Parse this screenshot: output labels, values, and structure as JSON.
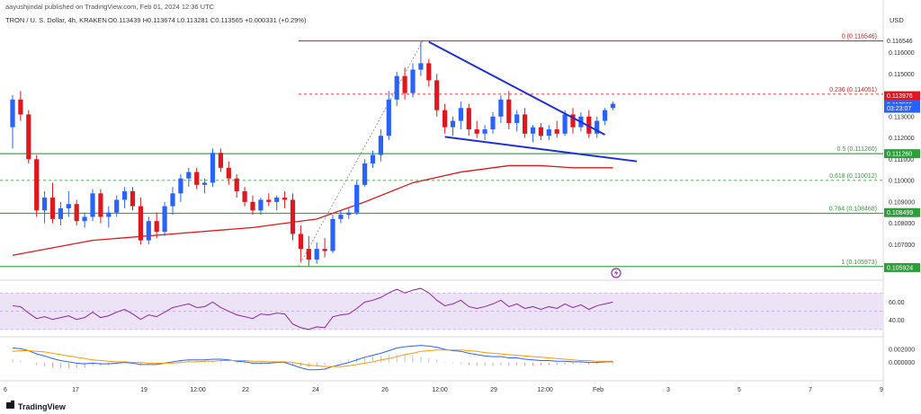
{
  "header": {
    "attribution": "aayushjindal published on TradingView.com, Feb 01, 2024 12:36 UTC",
    "symbol_line": "TRON / U. S. Dollar, 4h, KRAKEN",
    "ohlc": "O0.113439 H0.113674 L0.113281 C0.113565 +0.000331 (+0.29%)"
  },
  "axis": {
    "currency": "USD"
  },
  "footer": {
    "brand": "TradingView"
  },
  "colors": {
    "up": "#2962ff",
    "down": "#e0171f",
    "ma": "#e0171f",
    "fib_red": "#e0171f",
    "fib_green": "#2e9d3a",
    "rsi_line": "#8e24aa",
    "rsi_band": "#ede3f6",
    "trendline": "#1f2fd6",
    "macd_line": "#2962ff",
    "signal_line": "#ff9800"
  },
  "chart_data": [
    {
      "type": "candlestick",
      "title": "TRON / U. S. Dollar, 4h, KRAKEN",
      "ylim": [
        0.1055,
        0.1172
      ],
      "y_ticks": [
        "0.116000",
        "0.115000",
        "0.113000",
        "0.112000",
        "0.111000",
        "0.110000",
        "0.109000",
        "0.108000",
        "0.107000"
      ],
      "x_ticks": [
        "6",
        "17",
        "19",
        "12:00",
        "22",
        "24",
        "26",
        "12:00",
        "29",
        "12:00",
        "Feb",
        "3",
        "5",
        "7",
        "9"
      ],
      "candles": [
        {
          "o": 0.1125,
          "h": 0.114,
          "l": 0.1115,
          "c": 0.1138
        },
        {
          "o": 0.1138,
          "h": 0.1142,
          "l": 0.1128,
          "c": 0.1131
        },
        {
          "o": 0.1131,
          "h": 0.1133,
          "l": 0.1108,
          "c": 0.111
        },
        {
          "o": 0.111,
          "h": 0.1112,
          "l": 0.1083,
          "c": 0.1086
        },
        {
          "o": 0.1086,
          "h": 0.1095,
          "l": 0.108,
          "c": 0.1092
        },
        {
          "o": 0.1092,
          "h": 0.1099,
          "l": 0.108,
          "c": 0.1082
        },
        {
          "o": 0.1082,
          "h": 0.109,
          "l": 0.1079,
          "c": 0.1087
        },
        {
          "o": 0.1087,
          "h": 0.1095,
          "l": 0.1083,
          "c": 0.1089
        },
        {
          "o": 0.1089,
          "h": 0.1091,
          "l": 0.1079,
          "c": 0.1081
        },
        {
          "o": 0.1081,
          "h": 0.1085,
          "l": 0.1078,
          "c": 0.1083
        },
        {
          "o": 0.1083,
          "h": 0.1096,
          "l": 0.1081,
          "c": 0.1094
        },
        {
          "o": 0.1094,
          "h": 0.1096,
          "l": 0.108,
          "c": 0.1083
        },
        {
          "o": 0.1083,
          "h": 0.1088,
          "l": 0.1078,
          "c": 0.1085
        },
        {
          "o": 0.1085,
          "h": 0.1093,
          "l": 0.1083,
          "c": 0.1091
        },
        {
          "o": 0.1091,
          "h": 0.1097,
          "l": 0.1087,
          "c": 0.1095
        },
        {
          "o": 0.1095,
          "h": 0.1097,
          "l": 0.1086,
          "c": 0.1088
        },
        {
          "o": 0.1088,
          "h": 0.1092,
          "l": 0.107,
          "c": 0.1072
        },
        {
          "o": 0.1072,
          "h": 0.1083,
          "l": 0.107,
          "c": 0.1081
        },
        {
          "o": 0.1081,
          "h": 0.1085,
          "l": 0.1073,
          "c": 0.1076
        },
        {
          "o": 0.1076,
          "h": 0.109,
          "l": 0.1074,
          "c": 0.1088
        },
        {
          "o": 0.1088,
          "h": 0.1097,
          "l": 0.1084,
          "c": 0.1094
        },
        {
          "o": 0.1094,
          "h": 0.1103,
          "l": 0.109,
          "c": 0.1101
        },
        {
          "o": 0.1101,
          "h": 0.1106,
          "l": 0.1097,
          "c": 0.1104
        },
        {
          "o": 0.1104,
          "h": 0.1106,
          "l": 0.1096,
          "c": 0.1098
        },
        {
          "o": 0.1098,
          "h": 0.1101,
          "l": 0.1094,
          "c": 0.1099
        },
        {
          "o": 0.1099,
          "h": 0.1115,
          "l": 0.1097,
          "c": 0.1113
        },
        {
          "o": 0.1113,
          "h": 0.1115,
          "l": 0.1104,
          "c": 0.1106
        },
        {
          "o": 0.1106,
          "h": 0.1109,
          "l": 0.1098,
          "c": 0.1101
        },
        {
          "o": 0.1101,
          "h": 0.1103,
          "l": 0.1092,
          "c": 0.1095
        },
        {
          "o": 0.1095,
          "h": 0.1097,
          "l": 0.1088,
          "c": 0.109
        },
        {
          "o": 0.109,
          "h": 0.1093,
          "l": 0.1084,
          "c": 0.1086
        },
        {
          "o": 0.1086,
          "h": 0.1092,
          "l": 0.1084,
          "c": 0.1091
        },
        {
          "o": 0.1091,
          "h": 0.1094,
          "l": 0.1088,
          "c": 0.109
        },
        {
          "o": 0.109,
          "h": 0.1093,
          "l": 0.1086,
          "c": 0.1092
        },
        {
          "o": 0.1092,
          "h": 0.1095,
          "l": 0.1087,
          "c": 0.1091
        },
        {
          "o": 0.1091,
          "h": 0.1094,
          "l": 0.1072,
          "c": 0.1075
        },
        {
          "o": 0.1075,
          "h": 0.1079,
          "l": 0.1062,
          "c": 0.1068
        },
        {
          "o": 0.1068,
          "h": 0.1074,
          "l": 0.106,
          "c": 0.1063
        },
        {
          "o": 0.1063,
          "h": 0.1071,
          "l": 0.1061,
          "c": 0.1068
        },
        {
          "o": 0.1068,
          "h": 0.1073,
          "l": 0.1064,
          "c": 0.1067
        },
        {
          "o": 0.1067,
          "h": 0.1084,
          "l": 0.1066,
          "c": 0.1082
        },
        {
          "o": 0.1082,
          "h": 0.1086,
          "l": 0.108,
          "c": 0.1084
        },
        {
          "o": 0.1084,
          "h": 0.1087,
          "l": 0.1082,
          "c": 0.1085
        },
        {
          "o": 0.1085,
          "h": 0.11,
          "l": 0.1084,
          "c": 0.1098
        },
        {
          "o": 0.1098,
          "h": 0.111,
          "l": 0.1097,
          "c": 0.1108
        },
        {
          "o": 0.1108,
          "h": 0.1114,
          "l": 0.1106,
          "c": 0.1112
        },
        {
          "o": 0.1112,
          "h": 0.1124,
          "l": 0.1109,
          "c": 0.1121
        },
        {
          "o": 0.1121,
          "h": 0.1142,
          "l": 0.1119,
          "c": 0.1138
        },
        {
          "o": 0.1138,
          "h": 0.1151,
          "l": 0.1135,
          "c": 0.1149
        },
        {
          "o": 0.1149,
          "h": 0.1153,
          "l": 0.1138,
          "c": 0.1141
        },
        {
          "o": 0.1141,
          "h": 0.1155,
          "l": 0.1139,
          "c": 0.1152
        },
        {
          "o": 0.1152,
          "h": 0.1165,
          "l": 0.1149,
          "c": 0.1155
        },
        {
          "o": 0.1155,
          "h": 0.1157,
          "l": 0.1144,
          "c": 0.1147
        },
        {
          "o": 0.1147,
          "h": 0.115,
          "l": 0.113,
          "c": 0.1133
        },
        {
          "o": 0.1133,
          "h": 0.1136,
          "l": 0.1122,
          "c": 0.1125
        },
        {
          "o": 0.1125,
          "h": 0.113,
          "l": 0.1121,
          "c": 0.1128
        },
        {
          "o": 0.1128,
          "h": 0.1137,
          "l": 0.1124,
          "c": 0.1134
        },
        {
          "o": 0.1134,
          "h": 0.1136,
          "l": 0.1121,
          "c": 0.1124
        },
        {
          "o": 0.1124,
          "h": 0.1128,
          "l": 0.112,
          "c": 0.1122
        },
        {
          "o": 0.1122,
          "h": 0.1126,
          "l": 0.1119,
          "c": 0.1124
        },
        {
          "o": 0.1124,
          "h": 0.1132,
          "l": 0.1122,
          "c": 0.113
        },
        {
          "o": 0.113,
          "h": 0.114,
          "l": 0.1127,
          "c": 0.1138
        },
        {
          "o": 0.1138,
          "h": 0.1142,
          "l": 0.1124,
          "c": 0.1127
        },
        {
          "o": 0.1127,
          "h": 0.1133,
          "l": 0.1123,
          "c": 0.1131
        },
        {
          "o": 0.1131,
          "h": 0.1134,
          "l": 0.112,
          "c": 0.1122
        },
        {
          "o": 0.1122,
          "h": 0.1126,
          "l": 0.1118,
          "c": 0.1125
        },
        {
          "o": 0.1125,
          "h": 0.1127,
          "l": 0.1119,
          "c": 0.1121
        },
        {
          "o": 0.1121,
          "h": 0.1126,
          "l": 0.1119,
          "c": 0.1124
        },
        {
          "o": 0.1124,
          "h": 0.1128,
          "l": 0.112,
          "c": 0.1122
        },
        {
          "o": 0.1122,
          "h": 0.1133,
          "l": 0.1121,
          "c": 0.1131
        },
        {
          "o": 0.1131,
          "h": 0.1134,
          "l": 0.1122,
          "c": 0.1125
        },
        {
          "o": 0.1125,
          "h": 0.1132,
          "l": 0.1123,
          "c": 0.113
        },
        {
          "o": 0.113,
          "h": 0.1133,
          "l": 0.112,
          "c": 0.1122
        },
        {
          "o": 0.1122,
          "h": 0.113,
          "l": 0.112,
          "c": 0.1128
        },
        {
          "o": 0.1128,
          "h": 0.1134,
          "l": 0.1126,
          "c": 0.1133
        },
        {
          "o": 0.1134,
          "h": 0.1137,
          "l": 0.1133,
          "c": 0.1136
        }
      ],
      "ma": [
        {
          "i": 0,
          "v": 0.1065
        },
        {
          "i": 10,
          "v": 0.1072
        },
        {
          "i": 20,
          "v": 0.1075
        },
        {
          "i": 30,
          "v": 0.1078
        },
        {
          "i": 38,
          "v": 0.1082
        },
        {
          "i": 44,
          "v": 0.109
        },
        {
          "i": 50,
          "v": 0.1099
        },
        {
          "i": 56,
          "v": 0.1104
        },
        {
          "i": 62,
          "v": 0.1107
        },
        {
          "i": 66,
          "v": 0.1107
        },
        {
          "i": 70,
          "v": 0.1106
        },
        {
          "i": 75,
          "v": 0.1106
        }
      ],
      "trendlines": [
        {
          "from": {
            "i": 52,
            "v": 0.1165
          },
          "to": {
            "i": 74,
            "v": 0.11215
          }
        },
        {
          "from": {
            "i": 54,
            "v": 0.11205
          },
          "to": {
            "i": 78,
            "v": 0.1109
          }
        }
      ],
      "fib_levels": [
        {
          "label": "0 (0.116546)",
          "value": 0.116546,
          "color": "red",
          "style": "solid"
        },
        {
          "label": "0.236 (0.114051)",
          "value": 0.114051,
          "color": "red",
          "style": "dashed"
        },
        {
          "label": "0.5 (0.111260)",
          "value": 0.11126,
          "color": "green",
          "style": "solid"
        },
        {
          "label": "0.618 (0.110012)",
          "value": 0.110012,
          "color": "green",
          "style": "dashed"
        },
        {
          "label": "0.764 (0.108468)",
          "value": 0.108468,
          "color": "green",
          "style": "solid"
        },
        {
          "label": "1 (0.105973)",
          "value": 0.105973,
          "color": "green",
          "style": "solid"
        }
      ],
      "price_badges": [
        {
          "text": "0.116546",
          "value": 0.116546,
          "color": "none"
        },
        {
          "text": "0.113976",
          "value": 0.113976,
          "color": "red"
        },
        {
          "text": "0.113565",
          "value": 0.113565,
          "color": "blue"
        },
        {
          "text": "03:23:07",
          "value": 0.11339,
          "color": "blue"
        },
        {
          "text": "0.111260",
          "value": 0.11126,
          "color": "green"
        },
        {
          "text": "0.108499",
          "value": 0.108499,
          "color": "green"
        },
        {
          "text": "0.105924",
          "value": 0.105924,
          "color": "green"
        }
      ]
    },
    {
      "type": "line",
      "title": "RSI",
      "ylim": [
        25,
        80
      ],
      "y_ticks": [
        "60.00",
        "40.00"
      ],
      "band": [
        30,
        70
      ],
      "values": [
        56,
        55,
        48,
        42,
        44,
        41,
        43,
        45,
        41,
        43,
        49,
        43,
        45,
        49,
        52,
        47,
        41,
        46,
        44,
        49,
        54,
        56,
        58,
        54,
        55,
        60,
        54,
        50,
        46,
        44,
        42,
        47,
        46,
        48,
        47,
        36,
        32,
        30,
        33,
        32,
        44,
        46,
        47,
        53,
        60,
        62,
        65,
        70,
        74,
        70,
        73,
        75,
        70,
        62,
        56,
        58,
        62,
        55,
        53,
        55,
        58,
        62,
        55,
        58,
        53,
        55,
        52,
        55,
        53,
        58,
        54,
        57,
        52,
        56,
        58,
        60
      ]
    },
    {
      "type": "line",
      "title": "MACD",
      "ylim": [
        -0.0025,
        0.0035
      ],
      "y_ticks": [
        "0.002000",
        "0.000000"
      ],
      "macd": [
        0.0022,
        0.0021,
        0.0018,
        0.0013,
        0.001,
        0.0006,
        0.0003,
        0.0001,
        -0.0001,
        -0.0002,
        -0.0001,
        -0.0002,
        -0.0002,
        -0.0001,
        0.0,
        -0.0001,
        -0.0003,
        -0.0003,
        -0.0003,
        -0.0001,
        0.0001,
        0.0003,
        0.0004,
        0.0004,
        0.0004,
        0.0005,
        0.0005,
        0.0004,
        0.0002,
        0.0001,
        -0.0001,
        -0.0001,
        -0.0001,
        0.0,
        0.0,
        -0.0004,
        -0.0008,
        -0.0011,
        -0.0011,
        -0.001,
        -0.0006,
        -0.0003,
        0.0,
        0.0004,
        0.0008,
        0.0011,
        0.0014,
        0.0018,
        0.0022,
        0.0024,
        0.0025,
        0.0026,
        0.0025,
        0.0023,
        0.002,
        0.0018,
        0.0017,
        0.0014,
        0.0012,
        0.001,
        0.0009,
        0.0009,
        0.0007,
        0.0007,
        0.0005,
        0.0004,
        0.0003,
        0.0003,
        0.0002,
        0.0002,
        0.0001,
        0.0001,
        0.0,
        0.0,
        0.0001,
        0.0001
      ],
      "signal": [
        0.0017,
        0.0018,
        0.0018,
        0.0017,
        0.0016,
        0.0014,
        0.0012,
        0.001,
        0.0008,
        0.0006,
        0.0004,
        0.0003,
        0.0002,
        0.0001,
        0.0001,
        0.0,
        0.0,
        -0.0001,
        -0.0001,
        -0.0001,
        -0.0001,
        0.0,
        0.0001,
        0.0001,
        0.0002,
        0.0002,
        0.0003,
        0.0003,
        0.0003,
        0.0003,
        0.0002,
        0.0002,
        0.0001,
        0.0001,
        0.0001,
        0.0,
        -0.0002,
        -0.0004,
        -0.0005,
        -0.0006,
        -0.0006,
        -0.0006,
        -0.0005,
        -0.0003,
        -0.0001,
        0.0001,
        0.0004,
        0.0006,
        0.0009,
        0.0012,
        0.0014,
        0.0017,
        0.0018,
        0.0019,
        0.0019,
        0.0019,
        0.0019,
        0.0018,
        0.0017,
        0.0015,
        0.0014,
        0.0013,
        0.0012,
        0.0011,
        0.001,
        0.0009,
        0.0008,
        0.0007,
        0.0006,
        0.0005,
        0.0004,
        0.0003,
        0.0003,
        0.0002,
        0.0002,
        0.0002
      ]
    }
  ]
}
